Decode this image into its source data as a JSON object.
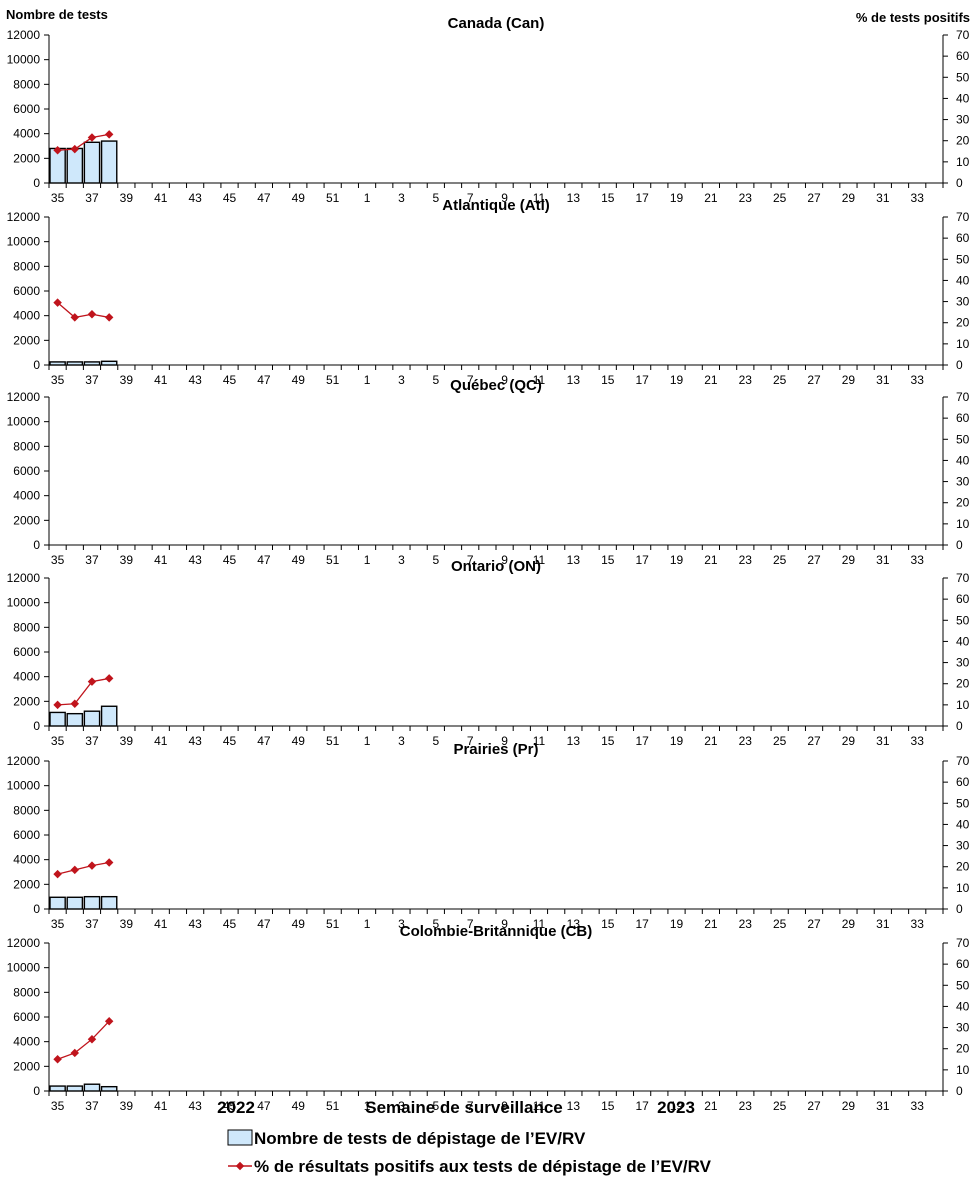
{
  "header": {
    "left_axis_title": "Nombre de tests",
    "right_axis_title": "% de tests positifs"
  },
  "footer": {
    "year_left": "2022",
    "xlabel": "Semaine de surveillance",
    "year_right": "2023"
  },
  "legend": {
    "bar_label": "Nombre de tests de dépistage de l’EV/RV",
    "line_label": "% de résultats positifs aux tests de dépistage de l’EV/RV"
  },
  "colors": {
    "bar_fill": "#cfe8fb",
    "bar_stroke": "#000000",
    "line": "#c0141c"
  },
  "chart_data": [
    {
      "type": "bar+line",
      "title": "Canada (Can)",
      "weeks": [
        35,
        36,
        37,
        38,
        39,
        40,
        41,
        42,
        43,
        44,
        45,
        46,
        47,
        48,
        49,
        50,
        51,
        52,
        1,
        2,
        3,
        4,
        5,
        6,
        7,
        8,
        9,
        10,
        11,
        12,
        13,
        14,
        15,
        16,
        17,
        18,
        19,
        20,
        21,
        22,
        23,
        24,
        25,
        26,
        27,
        28,
        29,
        30,
        31,
        32,
        33,
        34
      ],
      "tick_labels": [
        "35",
        "37",
        "39",
        "41",
        "43",
        "45",
        "47",
        "49",
        "51",
        "1",
        "3",
        "5",
        "7",
        "9",
        "11",
        "13",
        "15",
        "17",
        "19",
        "21",
        "23",
        "25",
        "27",
        "29",
        "31",
        "33"
      ],
      "y_left": {
        "range": [
          0,
          12000
        ],
        "ticks": [
          0,
          2000,
          4000,
          6000,
          8000,
          10000,
          12000
        ]
      },
      "y_right": {
        "range": [
          0,
          70
        ],
        "ticks": [
          0,
          10,
          20,
          30,
          40,
          50,
          60,
          70
        ]
      },
      "series": [
        {
          "name": "Nombre de tests de dépistage de l’EV/RV",
          "axis": "left",
          "kind": "bar",
          "values": [
            2800,
            2800,
            3300,
            3400
          ]
        },
        {
          "name": "% de résultats positifs aux tests de dépistage de l’EV/RV",
          "axis": "right",
          "kind": "line",
          "values": [
            15.5,
            16,
            21.5,
            23
          ]
        }
      ]
    },
    {
      "type": "bar+line",
      "title": "Atlantique (Atl)",
      "weeks": [
        35,
        36,
        37,
        38,
        39,
        40,
        41,
        42,
        43,
        44,
        45,
        46,
        47,
        48,
        49,
        50,
        51,
        52,
        1,
        2,
        3,
        4,
        5,
        6,
        7,
        8,
        9,
        10,
        11,
        12,
        13,
        14,
        15,
        16,
        17,
        18,
        19,
        20,
        21,
        22,
        23,
        24,
        25,
        26,
        27,
        28,
        29,
        30,
        31,
        32,
        33,
        34
      ],
      "tick_labels": [
        "35",
        "37",
        "39",
        "41",
        "43",
        "45",
        "47",
        "49",
        "51",
        "1",
        "3",
        "5",
        "7",
        "9",
        "11",
        "13",
        "15",
        "17",
        "19",
        "21",
        "23",
        "25",
        "27",
        "29",
        "31",
        "33"
      ],
      "y_left": {
        "range": [
          0,
          12000
        ],
        "ticks": [
          0,
          2000,
          4000,
          6000,
          8000,
          10000,
          12000
        ]
      },
      "y_right": {
        "range": [
          0,
          70
        ],
        "ticks": [
          0,
          10,
          20,
          30,
          40,
          50,
          60,
          70
        ]
      },
      "series": [
        {
          "name": "Nombre de tests de dépistage de l’EV/RV",
          "axis": "left",
          "kind": "bar",
          "values": [
            250,
            250,
            250,
            300
          ]
        },
        {
          "name": "% de résultats positifs aux tests de dépistage de l’EV/RV",
          "axis": "right",
          "kind": "line",
          "values": [
            29.5,
            22.5,
            24,
            22.5
          ]
        }
      ]
    },
    {
      "type": "bar+line",
      "title": "Québec (QC)",
      "weeks": [
        35,
        36,
        37,
        38,
        39,
        40,
        41,
        42,
        43,
        44,
        45,
        46,
        47,
        48,
        49,
        50,
        51,
        52,
        1,
        2,
        3,
        4,
        5,
        6,
        7,
        8,
        9,
        10,
        11,
        12,
        13,
        14,
        15,
        16,
        17,
        18,
        19,
        20,
        21,
        22,
        23,
        24,
        25,
        26,
        27,
        28,
        29,
        30,
        31,
        32,
        33,
        34
      ],
      "tick_labels": [
        "35",
        "37",
        "39",
        "41",
        "43",
        "45",
        "47",
        "49",
        "51",
        "1",
        "3",
        "5",
        "7",
        "9",
        "11",
        "13",
        "15",
        "17",
        "19",
        "21",
        "23",
        "25",
        "27",
        "29",
        "31",
        "33"
      ],
      "y_left": {
        "range": [
          0,
          12000
        ],
        "ticks": [
          0,
          2000,
          4000,
          6000,
          8000,
          10000,
          12000
        ]
      },
      "y_right": {
        "range": [
          0,
          70
        ],
        "ticks": [
          0,
          10,
          20,
          30,
          40,
          50,
          60,
          70
        ]
      },
      "series": [
        {
          "name": "Nombre de tests de dépistage de l’EV/RV",
          "axis": "left",
          "kind": "bar",
          "values": []
        },
        {
          "name": "% de résultats positifs aux tests de dépistage de l’EV/RV",
          "axis": "right",
          "kind": "line",
          "values": []
        }
      ]
    },
    {
      "type": "bar+line",
      "title": "Ontario (ON)",
      "weeks": [
        35,
        36,
        37,
        38,
        39,
        40,
        41,
        42,
        43,
        44,
        45,
        46,
        47,
        48,
        49,
        50,
        51,
        52,
        1,
        2,
        3,
        4,
        5,
        6,
        7,
        8,
        9,
        10,
        11,
        12,
        13,
        14,
        15,
        16,
        17,
        18,
        19,
        20,
        21,
        22,
        23,
        24,
        25,
        26,
        27,
        28,
        29,
        30,
        31,
        32,
        33,
        34
      ],
      "tick_labels": [
        "35",
        "37",
        "39",
        "41",
        "43",
        "45",
        "47",
        "49",
        "51",
        "1",
        "3",
        "5",
        "7",
        "9",
        "11",
        "13",
        "15",
        "17",
        "19",
        "21",
        "23",
        "25",
        "27",
        "29",
        "31",
        "33"
      ],
      "y_left": {
        "range": [
          0,
          12000
        ],
        "ticks": [
          0,
          2000,
          4000,
          6000,
          8000,
          10000,
          12000
        ]
      },
      "y_right": {
        "range": [
          0,
          70
        ],
        "ticks": [
          0,
          10,
          20,
          30,
          40,
          50,
          60,
          70
        ]
      },
      "series": [
        {
          "name": "Nombre de tests de dépistage de l’EV/RV",
          "axis": "left",
          "kind": "bar",
          "values": [
            1100,
            1000,
            1200,
            1600
          ]
        },
        {
          "name": "% de résultats positifs aux tests de dépistage de l’EV/RV",
          "axis": "right",
          "kind": "line",
          "values": [
            10,
            10.5,
            21,
            22.5
          ]
        }
      ]
    },
    {
      "type": "bar+line",
      "title": "Prairies (Pr)",
      "weeks": [
        35,
        36,
        37,
        38,
        39,
        40,
        41,
        42,
        43,
        44,
        45,
        46,
        47,
        48,
        49,
        50,
        51,
        52,
        1,
        2,
        3,
        4,
        5,
        6,
        7,
        8,
        9,
        10,
        11,
        12,
        13,
        14,
        15,
        16,
        17,
        18,
        19,
        20,
        21,
        22,
        23,
        24,
        25,
        26,
        27,
        28,
        29,
        30,
        31,
        32,
        33,
        34
      ],
      "tick_labels": [
        "35",
        "37",
        "39",
        "41",
        "43",
        "45",
        "47",
        "49",
        "51",
        "1",
        "3",
        "5",
        "7",
        "9",
        "11",
        "13",
        "15",
        "17",
        "19",
        "21",
        "23",
        "25",
        "27",
        "29",
        "31",
        "33"
      ],
      "y_left": {
        "range": [
          0,
          12000
        ],
        "ticks": [
          0,
          2000,
          4000,
          6000,
          8000,
          10000,
          12000
        ]
      },
      "y_right": {
        "range": [
          0,
          70
        ],
        "ticks": [
          0,
          10,
          20,
          30,
          40,
          50,
          60,
          70
        ]
      },
      "series": [
        {
          "name": "Nombre de tests de dépistage de l’EV/RV",
          "axis": "left",
          "kind": "bar",
          "values": [
            950,
            950,
            1000,
            1000
          ]
        },
        {
          "name": "% de résultats positifs aux tests de dépistage de l’EV/RV",
          "axis": "right",
          "kind": "line",
          "values": [
            16.5,
            18.5,
            20.5,
            22
          ]
        }
      ]
    },
    {
      "type": "bar+line",
      "title": "Colombie-Britannique (CB)",
      "weeks": [
        35,
        36,
        37,
        38,
        39,
        40,
        41,
        42,
        43,
        44,
        45,
        46,
        47,
        48,
        49,
        50,
        51,
        52,
        1,
        2,
        3,
        4,
        5,
        6,
        7,
        8,
        9,
        10,
        11,
        12,
        13,
        14,
        15,
        16,
        17,
        18,
        19,
        20,
        21,
        22,
        23,
        24,
        25,
        26,
        27,
        28,
        29,
        30,
        31,
        32,
        33,
        34
      ],
      "tick_labels": [
        "35",
        "37",
        "39",
        "41",
        "43",
        "45",
        "47",
        "49",
        "51",
        "1",
        "3",
        "5",
        "7",
        "9",
        "11",
        "13",
        "15",
        "17",
        "19",
        "21",
        "23",
        "25",
        "27",
        "29",
        "31",
        "33"
      ],
      "y_left": {
        "range": [
          0,
          12000
        ],
        "ticks": [
          0,
          2000,
          4000,
          6000,
          8000,
          10000,
          12000
        ]
      },
      "y_right": {
        "range": [
          0,
          70
        ],
        "ticks": [
          0,
          10,
          20,
          30,
          40,
          50,
          60,
          70
        ]
      },
      "series": [
        {
          "name": "Nombre de tests de dépistage de l’EV/RV",
          "axis": "left",
          "kind": "bar",
          "values": [
            400,
            400,
            550,
            350
          ]
        },
        {
          "name": "% de résultats positifs aux tests de dépistage de l’EV/RV",
          "axis": "right",
          "kind": "line",
          "values": [
            15,
            18,
            24.5,
            33
          ]
        }
      ]
    }
  ]
}
